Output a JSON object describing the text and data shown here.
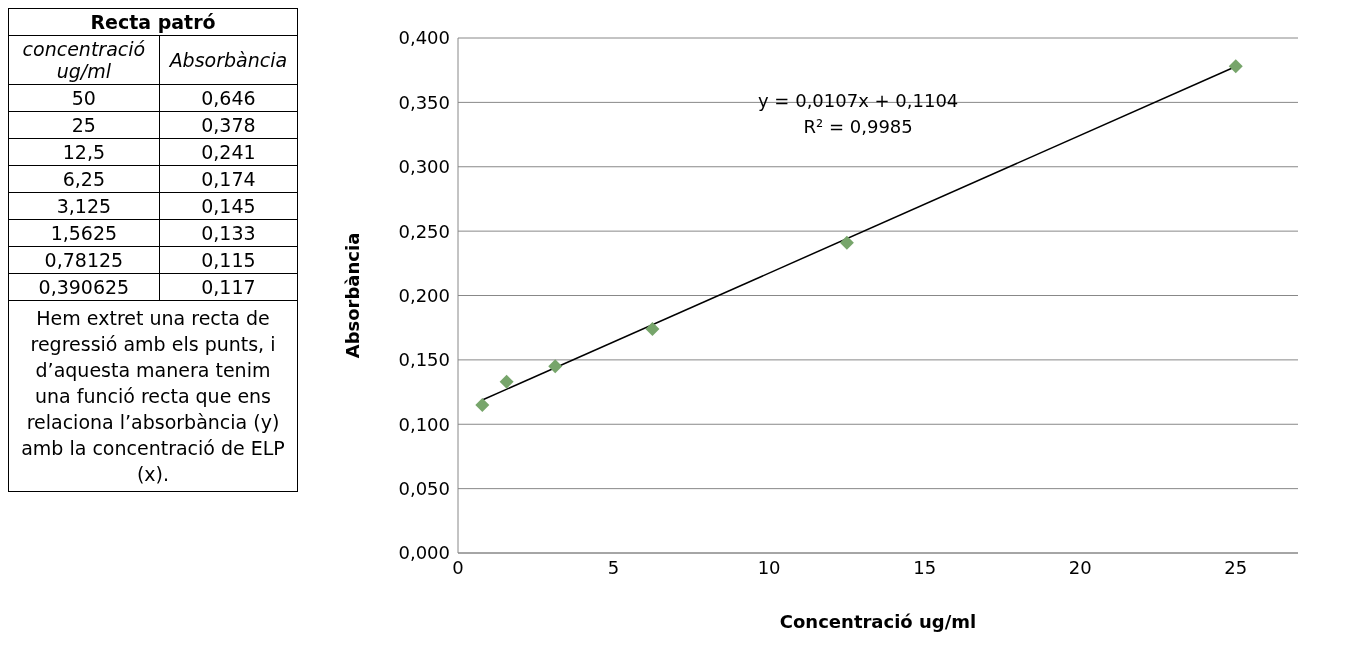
{
  "chart_data": [
    {
      "type": "other",
      "title": "Recta patró",
      "annotations": [
        "concentració ug/ml",
        "Absorbància",
        "50",
        "0,646",
        "25",
        "0,378",
        "12,5",
        "0,241",
        "6,25",
        "0,174",
        "3,125",
        "0,145",
        "1,5625",
        "0,133",
        "0,78125",
        "0,115",
        "0,390625",
        "0,117",
        "Hem extret una recta de regressió amb els punts, i d’aquesta manera tenim una funció recta que ens relaciona l’absorbància (y) amb la concentració de ELP (x)."
      ]
    },
    {
      "type": "scatter",
      "xlabel": "Concentració ug/ml",
      "ylabel": "Absorbància",
      "xlim": [
        0,
        27
      ],
      "xticks": [
        0,
        5,
        10,
        15,
        20,
        25
      ],
      "ylim": [
        0,
        0.4
      ],
      "yticks": [
        {
          "value": 0,
          "label": "0,000"
        },
        {
          "value": 0.05,
          "label": "0,050"
        },
        {
          "value": 0.1,
          "label": "0,100"
        },
        {
          "value": 0.15,
          "label": "0,150"
        },
        {
          "value": 0.2,
          "label": "0,200"
        },
        {
          "value": 0.25,
          "label": "0,250"
        },
        {
          "value": 0.3,
          "label": "0,300"
        },
        {
          "value": 0.35,
          "label": "0,350"
        },
        {
          "value": 0.4,
          "label": "0,400"
        }
      ],
      "grid": "y",
      "marker": "diamond",
      "series": [
        {
          "type": "scatter",
          "color": "#77a56b",
          "x": [
            0.78125,
            1.5625,
            3.125,
            6.25,
            12.5,
            25
          ],
          "values": [
            0.115,
            0.133,
            0.145,
            0.174,
            0.241,
            0.378
          ]
        },
        {
          "type": "line",
          "color": "#000000",
          "marker": "none",
          "line_style": "solid",
          "x": [
            0.78125,
            25
          ],
          "values": [
            0.1188,
            0.3779
          ]
        }
      ],
      "annotations": [
        "y = 0,0107x + 0,1104",
        "R² = 0,9985"
      ]
    }
  ]
}
